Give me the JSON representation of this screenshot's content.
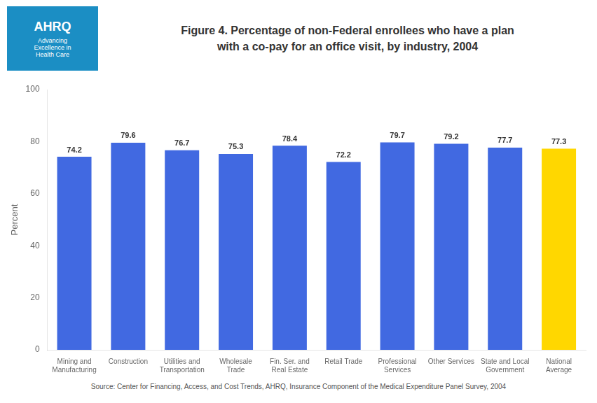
{
  "chart_data": {
    "type": "bar",
    "title": "Figure 4. Percentage of non-Federal  enrollees who have a plan\nwith a co-pay for an office visit, by industry, 2004",
    "ylabel": "Percent",
    "categories": [
      "Mining and\nManufacturing",
      "Construction",
      "Utilities and\nTransportation",
      "Wholesale\nTrade",
      "Fin. Ser. and\nReal Estate",
      "Retail Trade",
      "Professional\nServices",
      "Other Services",
      "State and Local\nGovernment",
      "National\nAverage"
    ],
    "values": [
      74.2,
      79.6,
      76.7,
      75.3,
      78.4,
      72.2,
      79.7,
      79.2,
      77.7,
      77.3
    ],
    "colors": [
      "#4169E1",
      "#4169E1",
      "#4169E1",
      "#4169E1",
      "#4169E1",
      "#4169E1",
      "#4169E1",
      "#4169E1",
      "#4169E1",
      "#FFD700"
    ],
    "ylim": [
      0,
      100
    ],
    "yticks": [
      0,
      20,
      40,
      60,
      80,
      100
    ],
    "grid": false,
    "data_labels": true,
    "annotations": [
      "AHRQ",
      "Advancing\nExcellence in\nHealth Care",
      "Source:  Center for Financing, Access, and Cost Trends, AHRQ, Insurance Component of the Medical Expenditure Panel Survey, 2004"
    ]
  }
}
